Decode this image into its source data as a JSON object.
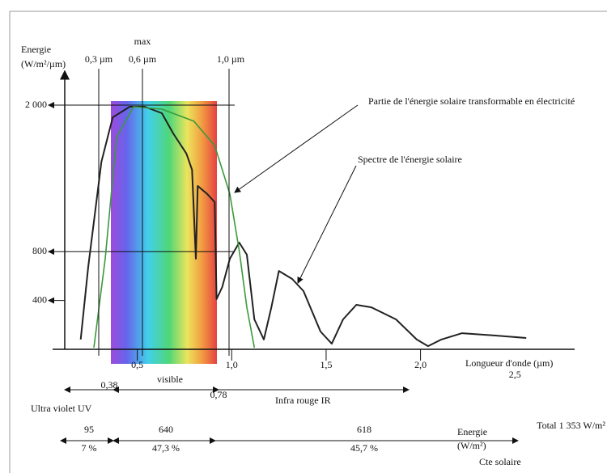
{
  "chart_data": {
    "type": "line",
    "ylabel_line1": "Energie",
    "ylabel_line2": "(W/m²/µm)",
    "xlabel": "Longueur d'onde (µm)",
    "xlim": [
      0,
      2.6
    ],
    "ylim": [
      0,
      2000
    ],
    "xticks": [
      {
        "value": 0.5,
        "label": "0,5"
      },
      {
        "value": 1.0,
        "label": "1,0"
      },
      {
        "value": 1.5,
        "label": "1,5"
      },
      {
        "value": 2.0,
        "label": "2,0"
      },
      {
        "value": 2.5,
        "label": "2,5"
      }
    ],
    "yticks": [
      {
        "value": 400,
        "label": "400"
      },
      {
        "value": 800,
        "label": "800"
      },
      {
        "value": 2000,
        "label": "2 000"
      }
    ],
    "series": [
      {
        "name": "Spectre de l'énergie solaire",
        "color": "#222222",
        "x": [
          0.2,
          0.24,
          0.31,
          0.37,
          0.46,
          0.54,
          0.63,
          0.69,
          0.76,
          0.79,
          0.81,
          0.82,
          0.87,
          0.91,
          0.92,
          0.95,
          0.99,
          1.04,
          1.08,
          1.12,
          1.17,
          1.21,
          1.25,
          1.32,
          1.38,
          1.47,
          1.53,
          1.59,
          1.66,
          1.74,
          1.87,
          1.98,
          2.04,
          2.11,
          2.22,
          2.39,
          2.56
        ],
        "values": [
          80,
          675,
          1536,
          1900,
          1987,
          1987,
          1934,
          1768,
          1603,
          1470,
          742,
          1338,
          1272,
          1205,
          411,
          510,
          742,
          874,
          775,
          245,
          80,
          344,
          642,
          576,
          477,
          146,
          46,
          245,
          364,
          344,
          245,
          80,
          26,
          80,
          132,
          113,
          93
        ]
      },
      {
        "name": "Partie de l'énergie solaire transformable en électricité",
        "color": "#3a9a3a",
        "x": [
          0.27,
          0.33,
          0.39,
          0.48,
          0.63,
          0.8,
          0.91,
          0.99,
          1.04,
          1.08,
          1.12
        ],
        "values": [
          13,
          742,
          1735,
          1987,
          1967,
          1868,
          1669,
          1272,
          808,
          344,
          13
        ]
      }
    ],
    "markers": [
      {
        "top": "",
        "label": "0,3 µm"
      },
      {
        "top": "max",
        "label": "0,6 µm"
      },
      {
        "top": "",
        "label": "1,0 µm"
      }
    ],
    "bands": {
      "uv_edge": "0,38",
      "visible": "visible",
      "ir_edge": "0,78",
      "uv": "Ultra violet UV",
      "ir": "Infra rouge IR"
    },
    "energy": {
      "uv": "95",
      "visible": "640",
      "ir": "618",
      "uv_pct": "7 %",
      "visible_pct": "47,3 %",
      "ir_pct": "45,7 %",
      "label_line1": "Energie",
      "label_line2": "(W/m²)",
      "total": "Total 1 353 W/m²",
      "constant": "Cte solaire"
    }
  }
}
